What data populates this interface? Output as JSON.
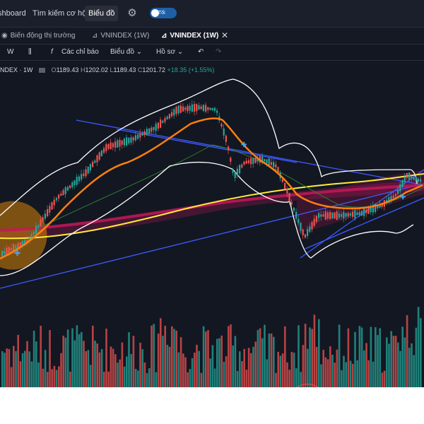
{
  "topnav": {
    "items": [
      {
        "label": "shboard"
      },
      {
        "label": "Tìm kiếm cơ hội"
      },
      {
        "label": "Biểu đồ"
      }
    ],
    "theme_toggle_label": "Tối"
  },
  "tabs": [
    {
      "label": "Biến động thị trường",
      "icon": "globe-icon"
    },
    {
      "label": "VNINDEX (1W)",
      "icon": "chart-icon"
    },
    {
      "label": "VNINDEX (1W)",
      "icon": "chart-icon"
    }
  ],
  "toolbar": {
    "interval": "W",
    "indicators": "Các chỉ báo",
    "chart": "Biểu đồ",
    "profile": "Hồ sơ"
  },
  "legend": {
    "symbol": "NDEX · 1W",
    "open_label": "O",
    "open": "1189.43",
    "high_label": "H",
    "high": "1202.02",
    "low_label": "L",
    "low": "1189.43",
    "close_label": "C",
    "close": "1201.72",
    "change": "+18.35 (+1.55%)"
  },
  "colors": {
    "background": "#131722",
    "candle_up": "#26a69a",
    "candle_down": "#ef5350",
    "bollinger": "#ffffff",
    "ema_short": "#ff7f0e",
    "ma_long": "#ffeb3b",
    "ma_mid": "#c2185b",
    "trendline": "#3d5afe",
    "highlight_circle": "#ff9800"
  }
}
